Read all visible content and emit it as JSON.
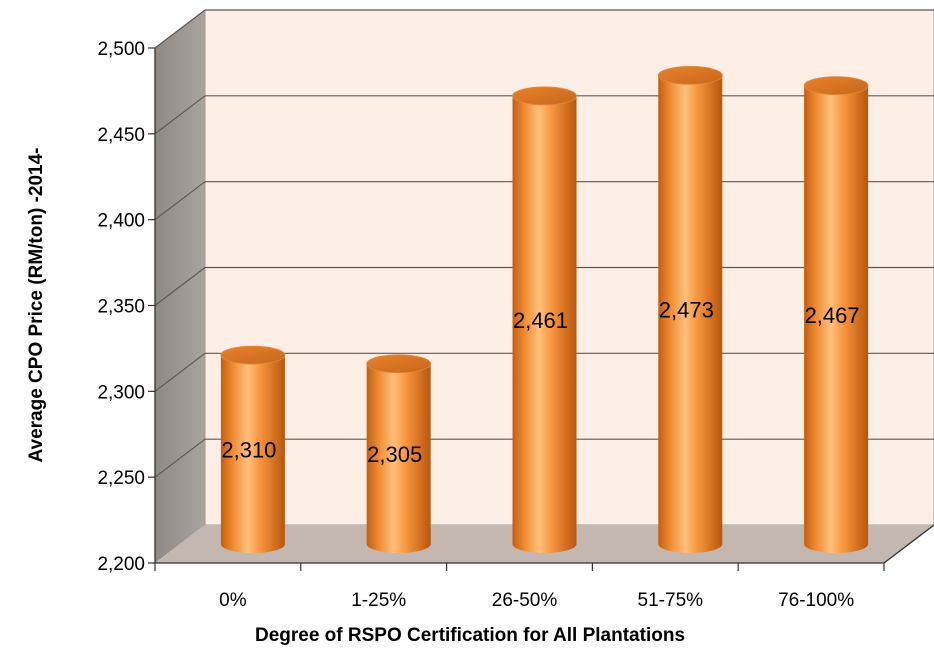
{
  "chart_data": {
    "type": "bar",
    "title": "",
    "xlabel": "Degree of RSPO Certification for All Plantations",
    "ylabel": "Average CPO Price (RM/ton) -2014-",
    "categories": [
      "0%",
      "1-25%",
      "26-50%",
      "51-75%",
      "76-100%"
    ],
    "values": [
      2310,
      2305,
      2461,
      2473,
      2467
    ],
    "value_labels": [
      "2,310",
      "2,305",
      "2,461",
      "2,473",
      "2,467"
    ],
    "ylim": [
      2200,
      2500
    ],
    "yticks": [
      2200,
      2250,
      2300,
      2350,
      2400,
      2450,
      2500
    ],
    "ytick_labels": [
      "2,200",
      "2,250",
      "2,300",
      "2,350",
      "2,400",
      "2,450",
      "2,500"
    ],
    "grid": true,
    "legend": "none",
    "style": "3d-cylinder",
    "colors": {
      "bar": "#f7943c",
      "bar_highlight": "#ffc07a",
      "bar_shadow": "#c25e10",
      "back_wall": "#fdeee6",
      "side_wall": "#a09a97",
      "floor": "#c4b7b0",
      "gridline": "#5a5a5a"
    }
  }
}
